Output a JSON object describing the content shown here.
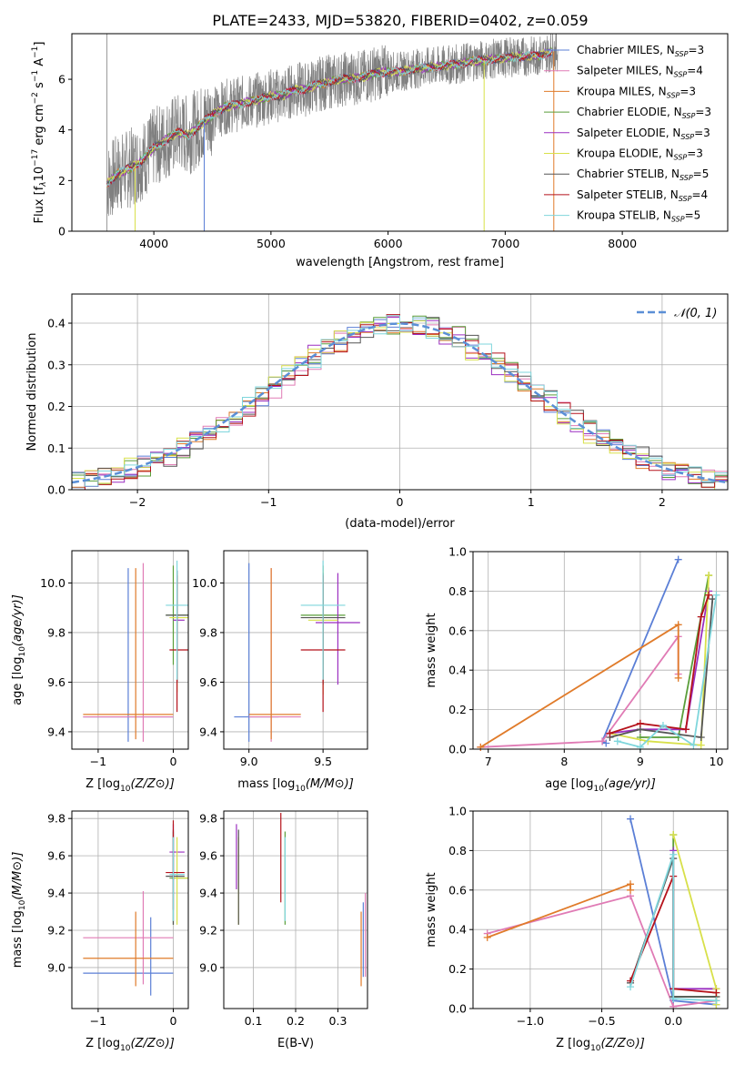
{
  "figure_title": "PLATE=2433, MJD=53820, FIBERID=0402, z=0.059",
  "colors": {
    "data": "#808080",
    "models": [
      "#5b7fd6",
      "#e07bb5",
      "#e07b2a",
      "#5a9e3a",
      "#9b2fc0",
      "#d8e04a",
      "#555555",
      "#b5121b",
      "#7fd6dc"
    ],
    "gaussian": "#5b8fd6",
    "grid": "#b0b0b0"
  },
  "chart_data": [
    {
      "id": "spectrum",
      "type": "line",
      "xlabel": "wavelength [Angstrom, rest frame]",
      "ylabel": "Flux [f$_\\lambda$10$^{-17}$ erg cm$^{-2}$ s$^{-1}$ A$^{-1}$]",
      "ylabel_parts": [
        "Flux [f",
        "λ",
        "10",
        "−17",
        " erg cm",
        "−2",
        " s",
        "−1",
        " A",
        "−1",
        "]"
      ],
      "xlim": [
        3300,
        8900
      ],
      "ylim": [
        0,
        7.8
      ],
      "xticks": [
        4000,
        5000,
        6000,
        7000,
        8000
      ],
      "yticks": [
        0,
        2,
        4,
        6
      ],
      "legend": [
        {
          "label": "Chabrier MILES, N",
          "sub": "SSP",
          "val": "=3"
        },
        {
          "label": "Salpeter MILES, N",
          "sub": "SSP",
          "val": "=4"
        },
        {
          "label": "Kroupa MILES, N",
          "sub": "SSP",
          "val": "=3"
        },
        {
          "label": "Chabrier ELODIE, N",
          "sub": "SSP",
          "val": "=3"
        },
        {
          "label": "Salpeter ELODIE, N",
          "sub": "SSP",
          "val": "=3"
        },
        {
          "label": "Kroupa ELODIE, N",
          "sub": "SSP",
          "val": "=3"
        },
        {
          "label": "Chabrier STELIB, N",
          "sub": "SSP",
          "val": "=5"
        },
        {
          "label": "Salpeter STELIB, N",
          "sub": "SSP",
          "val": "=4"
        },
        {
          "label": "Kroupa STELIB, N",
          "sub": "SSP",
          "val": "=5"
        }
      ],
      "continuum": [
        [
          3600,
          1.9
        ],
        [
          3700,
          2.3
        ],
        [
          3800,
          2.5
        ],
        [
          3900,
          2.8
        ],
        [
          4000,
          3.3
        ],
        [
          4100,
          3.6
        ],
        [
          4200,
          3.9
        ],
        [
          4300,
          3.8
        ],
        [
          4400,
          4.2
        ],
        [
          4500,
          4.6
        ],
        [
          4600,
          4.9
        ],
        [
          4700,
          5.0
        ],
        [
          4800,
          5.1
        ],
        [
          4900,
          5.2
        ],
        [
          5000,
          5.35
        ],
        [
          5100,
          5.35
        ],
        [
          5200,
          5.6
        ],
        [
          5300,
          5.6
        ],
        [
          5400,
          5.8
        ],
        [
          5500,
          5.9
        ],
        [
          5600,
          6.0
        ],
        [
          5700,
          6.05
        ],
        [
          5800,
          6.1
        ],
        [
          5900,
          6.25
        ],
        [
          6000,
          6.3
        ],
        [
          6100,
          6.3
        ],
        [
          6200,
          6.4
        ],
        [
          6300,
          6.45
        ],
        [
          6400,
          6.5
        ],
        [
          6500,
          6.55
        ],
        [
          6600,
          6.6
        ],
        [
          6700,
          6.7
        ],
        [
          6800,
          6.75
        ],
        [
          6900,
          6.8
        ],
        [
          7000,
          6.85
        ],
        [
          7100,
          6.9
        ],
        [
          7200,
          6.9
        ],
        [
          7300,
          6.95
        ],
        [
          7400,
          7.1
        ]
      ],
      "model_end_x": 7400,
      "data_range": [
        3600,
        7450
      ]
    },
    {
      "id": "residuals",
      "type": "step",
      "xlabel": "(data-model)/error",
      "ylabel": "Normed distribution",
      "xlim": [
        -2.5,
        2.5
      ],
      "ylim": [
        0,
        0.47
      ],
      "xticks": [
        -2,
        -1,
        0,
        1,
        2
      ],
      "yticks": [
        0.0,
        0.1,
        0.2,
        0.3,
        0.4
      ],
      "legend": "𝒩(0, 1)",
      "bin_width": 0.1
    },
    {
      "id": "age_vs_Z",
      "type": "errorbar",
      "xlabel": "Z [log10(Z/Z⊙)]",
      "ylabel": "age  [log10(age/yr)]",
      "xlim": [
        -1.35,
        0.2
      ],
      "ylim": [
        9.33,
        10.13
      ],
      "xticks": [
        -1,
        0
      ],
      "yticks": [
        9.4,
        9.6,
        9.8,
        10.0
      ],
      "points": [
        {
          "x": -0.6,
          "y": 9.46,
          "xerr": [
            0.6,
            0.6
          ],
          "yerr": [
            0.1,
            0.6
          ]
        },
        {
          "x": -0.4,
          "y": 9.46,
          "xerr": [
            0.8,
            0.4
          ],
          "yerr": [
            0.1,
            0.62
          ]
        },
        {
          "x": -0.5,
          "y": 9.47,
          "xerr": [
            0.7,
            0.5
          ],
          "yerr": [
            0.1,
            0.59
          ]
        },
        {
          "x": 0.0,
          "y": 9.87,
          "xerr": [
            0.1,
            0.2
          ],
          "yerr": [
            0.2,
            0.2
          ]
        },
        {
          "x": 0.05,
          "y": 9.85,
          "xerr": [
            0.05,
            0.1
          ],
          "yerr": [
            0.25,
            0.2
          ]
        },
        {
          "x": 0.05,
          "y": 9.86,
          "xerr": [
            0.1,
            0.15
          ],
          "yerr": [
            0.3,
            0.18
          ]
        },
        {
          "x": 0.05,
          "y": 9.87,
          "xerr": [
            0.15,
            0.15
          ],
          "yerr": [
            0.27,
            0.18
          ]
        },
        {
          "x": 0.05,
          "y": 9.73,
          "xerr": [
            0.1,
            0.15
          ],
          "yerr": [
            0.25,
            0.3
          ]
        },
        {
          "x": 0.05,
          "y": 9.91,
          "xerr": [
            0.15,
            0.15
          ],
          "yerr": [
            0.3,
            0.18
          ]
        }
      ]
    },
    {
      "id": "age_vs_mass",
      "type": "errorbar",
      "xlabel": "mass [log10(M/M⊙)]",
      "ylabel": "",
      "xlim": [
        8.83,
        9.8
      ],
      "ylim": [
        9.33,
        10.13
      ],
      "xticks": [
        9.0,
        9.5
      ],
      "yticks": [
        9.4,
        9.6,
        9.8,
        10.0
      ],
      "points": [
        {
          "x": 9.0,
          "y": 9.46,
          "xerr": [
            0.1,
            0.2
          ],
          "yerr": [
            0.1,
            0.62
          ]
        },
        {
          "x": 9.15,
          "y": 9.46,
          "xerr": [
            0.15,
            0.2
          ],
          "yerr": [
            0.1,
            0.6
          ]
        },
        {
          "x": 9.15,
          "y": 9.47,
          "xerr": [
            0.15,
            0.2
          ],
          "yerr": [
            0.1,
            0.59
          ]
        },
        {
          "x": 9.5,
          "y": 9.87,
          "xerr": [
            0.15,
            0.15
          ],
          "yerr": [
            0.2,
            0.2
          ]
        },
        {
          "x": 9.6,
          "y": 9.84,
          "xerr": [
            0.15,
            0.15
          ],
          "yerr": [
            0.25,
            0.2
          ]
        },
        {
          "x": 9.5,
          "y": 9.85,
          "xerr": [
            0.1,
            0.1
          ],
          "yerr": [
            0.3,
            0.2
          ]
        },
        {
          "x": 9.5,
          "y": 9.86,
          "xerr": [
            0.15,
            0.15
          ],
          "yerr": [
            0.27,
            0.18
          ]
        },
        {
          "x": 9.5,
          "y": 9.73,
          "xerr": [
            0.15,
            0.15
          ],
          "yerr": [
            0.25,
            0.3
          ]
        },
        {
          "x": 9.5,
          "y": 9.91,
          "xerr": [
            0.15,
            0.15
          ],
          "yerr": [
            0.3,
            0.18
          ]
        }
      ]
    },
    {
      "id": "weight_vs_age",
      "type": "line",
      "xlabel": "age  [log10(age/yr)]",
      "ylabel": "mass weight",
      "xlim": [
        6.8,
        10.15
      ],
      "ylim": [
        0,
        1.0
      ],
      "xticks": [
        7,
        8,
        9,
        10
      ],
      "yticks": [
        0.0,
        0.2,
        0.4,
        0.6,
        0.8,
        1.0
      ],
      "series": [
        {
          "x": [
            9.5,
            8.5,
            8.55
          ],
          "y": [
            0.96,
            0.04,
            0.03
          ]
        },
        {
          "x": [
            6.9,
            8.5,
            9.5,
            9.5
          ],
          "y": [
            0.01,
            0.04,
            0.57,
            0.38
          ]
        },
        {
          "x": [
            6.9,
            9.5,
            9.5
          ],
          "y": [
            0.01,
            0.63,
            0.36
          ]
        },
        {
          "x": [
            9.0,
            9.5,
            9.9
          ],
          "y": [
            0.06,
            0.06,
            0.88
          ]
        },
        {
          "x": [
            8.6,
            9.0,
            9.6,
            9.9
          ],
          "y": [
            0.08,
            0.1,
            0.1,
            0.8
          ]
        },
        {
          "x": [
            8.6,
            9.1,
            9.8,
            9.9
          ],
          "y": [
            0.08,
            0.04,
            0.02,
            0.88
          ]
        },
        {
          "x": [
            8.6,
            9.0,
            9.8,
            9.95
          ],
          "y": [
            0.06,
            0.1,
            0.06,
            0.76
          ]
        },
        {
          "x": [
            8.6,
            9.0,
            9.6,
            9.8,
            9.9
          ],
          "y": [
            0.08,
            0.13,
            0.1,
            0.67,
            0.78
          ]
        },
        {
          "x": [
            8.7,
            9.0,
            9.3,
            9.7,
            10.0
          ],
          "y": [
            0.04,
            0.01,
            0.12,
            0.02,
            0.78
          ]
        }
      ]
    },
    {
      "id": "mass_vs_Z",
      "type": "errorbar",
      "xlabel": "Z [log10(Z/Z⊙)]",
      "ylabel": "mass [log10(M/M⊙)]",
      "xlim": [
        -1.35,
        0.2
      ],
      "ylim": [
        8.78,
        9.84
      ],
      "xticks": [
        -1,
        0
      ],
      "yticks": [
        9.0,
        9.2,
        9.4,
        9.6,
        9.8
      ],
      "points": [
        {
          "x": -0.3,
          "y": 8.97,
          "xerr": [
            0.9,
            0.3
          ],
          "yerr": [
            0.12,
            0.3
          ]
        },
        {
          "x": -0.4,
          "y": 9.16,
          "xerr": [
            0.8,
            0.4
          ],
          "yerr": [
            0.25,
            0.25
          ]
        },
        {
          "x": -0.5,
          "y": 9.05,
          "xerr": [
            0.7,
            0.5
          ],
          "yerr": [
            0.15,
            0.25
          ]
        },
        {
          "x": 0.0,
          "y": 9.48,
          "xerr": [
            0.05,
            0.2
          ],
          "yerr": [
            0.25,
            0.25
          ]
        },
        {
          "x": 0.0,
          "y": 9.62,
          "xerr": [
            0.05,
            0.15
          ],
          "yerr": [
            0.15,
            0.15
          ]
        },
        {
          "x": 0.05,
          "y": 9.48,
          "xerr": [
            0.05,
            0.15
          ],
          "yerr": [
            0.25,
            0.22
          ]
        },
        {
          "x": 0.0,
          "y": 9.49,
          "xerr": [
            0.1,
            0.15
          ],
          "yerr": [
            0.26,
            0.25
          ]
        },
        {
          "x": 0.0,
          "y": 9.51,
          "xerr": [
            0.1,
            0.15
          ],
          "yerr": [
            0.2,
            0.28
          ]
        },
        {
          "x": 0.0,
          "y": 9.5,
          "xerr": [
            0.05,
            0.15
          ],
          "yerr": [
            0.25,
            0.2
          ]
        }
      ]
    },
    {
      "id": "mass_vs_EBV",
      "type": "errorbar",
      "xlabel": "E(B-V)",
      "ylabel": "",
      "xlim": [
        0.03,
        0.37
      ],
      "ylim": [
        8.78,
        9.84
      ],
      "xticks": [
        0.1,
        0.2,
        0.3
      ],
      "yticks": [
        9.0,
        9.2,
        9.4,
        9.6,
        9.8
      ],
      "points": [
        {
          "x": 0.36,
          "y": 9.1,
          "yerr": [
            0.15,
            0.25
          ]
        },
        {
          "x": 0.365,
          "y": 9.15,
          "yerr": [
            0.2,
            0.25
          ]
        },
        {
          "x": 0.355,
          "y": 9.05,
          "yerr": [
            0.15,
            0.25
          ]
        },
        {
          "x": 0.175,
          "y": 9.48,
          "yerr": [
            0.25,
            0.25
          ]
        },
        {
          "x": 0.06,
          "y": 9.62,
          "yerr": [
            0.2,
            0.15
          ]
        },
        {
          "x": 0.065,
          "y": 9.48,
          "yerr": [
            0.25,
            0.22
          ]
        },
        {
          "x": 0.065,
          "y": 9.49,
          "yerr": [
            0.26,
            0.25
          ]
        },
        {
          "x": 0.165,
          "y": 9.55,
          "yerr": [
            0.2,
            0.28
          ]
        },
        {
          "x": 0.175,
          "y": 9.5,
          "yerr": [
            0.25,
            0.2
          ]
        }
      ]
    },
    {
      "id": "weight_vs_Z",
      "type": "line",
      "xlabel": "Z [log10(Z/Z⊙)]",
      "ylabel": "mass weight",
      "xlim": [
        -1.4,
        0.38
      ],
      "ylim": [
        0,
        1.0
      ],
      "xticks": [
        -1.0,
        -0.5,
        0.0
      ],
      "yticks": [
        0.0,
        0.2,
        0.4,
        0.6,
        0.8,
        1.0
      ],
      "series": [
        {
          "x": [
            -0.3,
            0.0,
            0.3
          ],
          "y": [
            0.96,
            0.04,
            0.02
          ]
        },
        {
          "x": [
            -1.3,
            -0.3,
            0.0,
            0.3
          ],
          "y": [
            0.38,
            0.57,
            0.01,
            0.04
          ]
        },
        {
          "x": [
            -1.3,
            -0.3,
            -0.3
          ],
          "y": [
            0.36,
            0.63,
            0.6
          ]
        },
        {
          "x": [
            0.0,
            0.0,
            0.3
          ],
          "y": [
            0.88,
            0.06,
            0.06
          ]
        },
        {
          "x": [
            0.0,
            0.0,
            0.3
          ],
          "y": [
            0.8,
            0.1,
            0.1
          ]
        },
        {
          "x": [
            0.0,
            0.3,
            0.3
          ],
          "y": [
            0.88,
            0.1,
            0.02
          ]
        },
        {
          "x": [
            -0.3,
            0.0,
            0.0,
            0.3
          ],
          "y": [
            0.13,
            0.76,
            0.06,
            0.06
          ]
        },
        {
          "x": [
            -0.3,
            0.0,
            0.0,
            0.3
          ],
          "y": [
            0.14,
            0.67,
            0.1,
            0.08
          ]
        },
        {
          "x": [
            -0.3,
            0.0,
            0.0,
            0.3
          ],
          "y": [
            0.11,
            0.78,
            0.05,
            0.04
          ]
        }
      ]
    }
  ]
}
